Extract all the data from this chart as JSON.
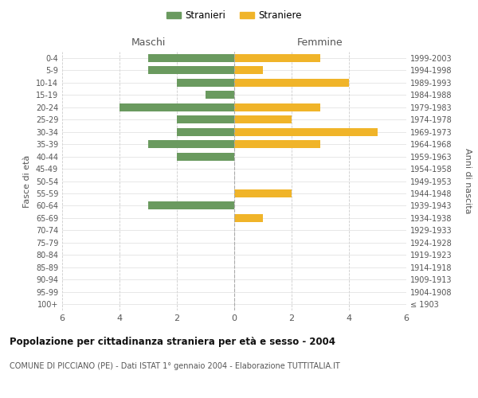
{
  "age_groups": [
    "100+",
    "95-99",
    "90-94",
    "85-89",
    "80-84",
    "75-79",
    "70-74",
    "65-69",
    "60-64",
    "55-59",
    "50-54",
    "45-49",
    "40-44",
    "35-39",
    "30-34",
    "25-29",
    "20-24",
    "15-19",
    "10-14",
    "5-9",
    "0-4"
  ],
  "birth_years": [
    "≤ 1903",
    "1904-1908",
    "1909-1913",
    "1914-1918",
    "1919-1923",
    "1924-1928",
    "1929-1933",
    "1934-1938",
    "1939-1943",
    "1944-1948",
    "1949-1953",
    "1954-1958",
    "1959-1963",
    "1964-1968",
    "1969-1973",
    "1974-1978",
    "1979-1983",
    "1984-1988",
    "1989-1993",
    "1994-1998",
    "1999-2003"
  ],
  "maschi": [
    0,
    0,
    0,
    0,
    0,
    0,
    0,
    0,
    3,
    0,
    0,
    0,
    2,
    3,
    2,
    2,
    4,
    1,
    2,
    3,
    3
  ],
  "femmine": [
    0,
    0,
    0,
    0,
    0,
    0,
    0,
    1,
    0,
    2,
    0,
    0,
    0,
    3,
    5,
    2,
    3,
    0,
    4,
    1,
    3
  ],
  "color_maschi": "#6a9a5f",
  "color_femmine": "#f0b429",
  "xlim": 6,
  "title": "Popolazione per cittadinanza straniera per età e sesso - 2004",
  "subtitle": "COMUNE DI PICCIANO (PE) - Dati ISTAT 1° gennaio 2004 - Elaborazione TUTTITALIA.IT",
  "ylabel_left": "Fasce di età",
  "ylabel_right": "Anni di nascita",
  "label_maschi": "Maschi",
  "label_femmine": "Femmine",
  "legend_maschi": "Stranieri",
  "legend_femmine": "Straniere",
  "background_color": "#ffffff",
  "grid_color": "#cccccc",
  "grid_color_y": "#dddddd"
}
